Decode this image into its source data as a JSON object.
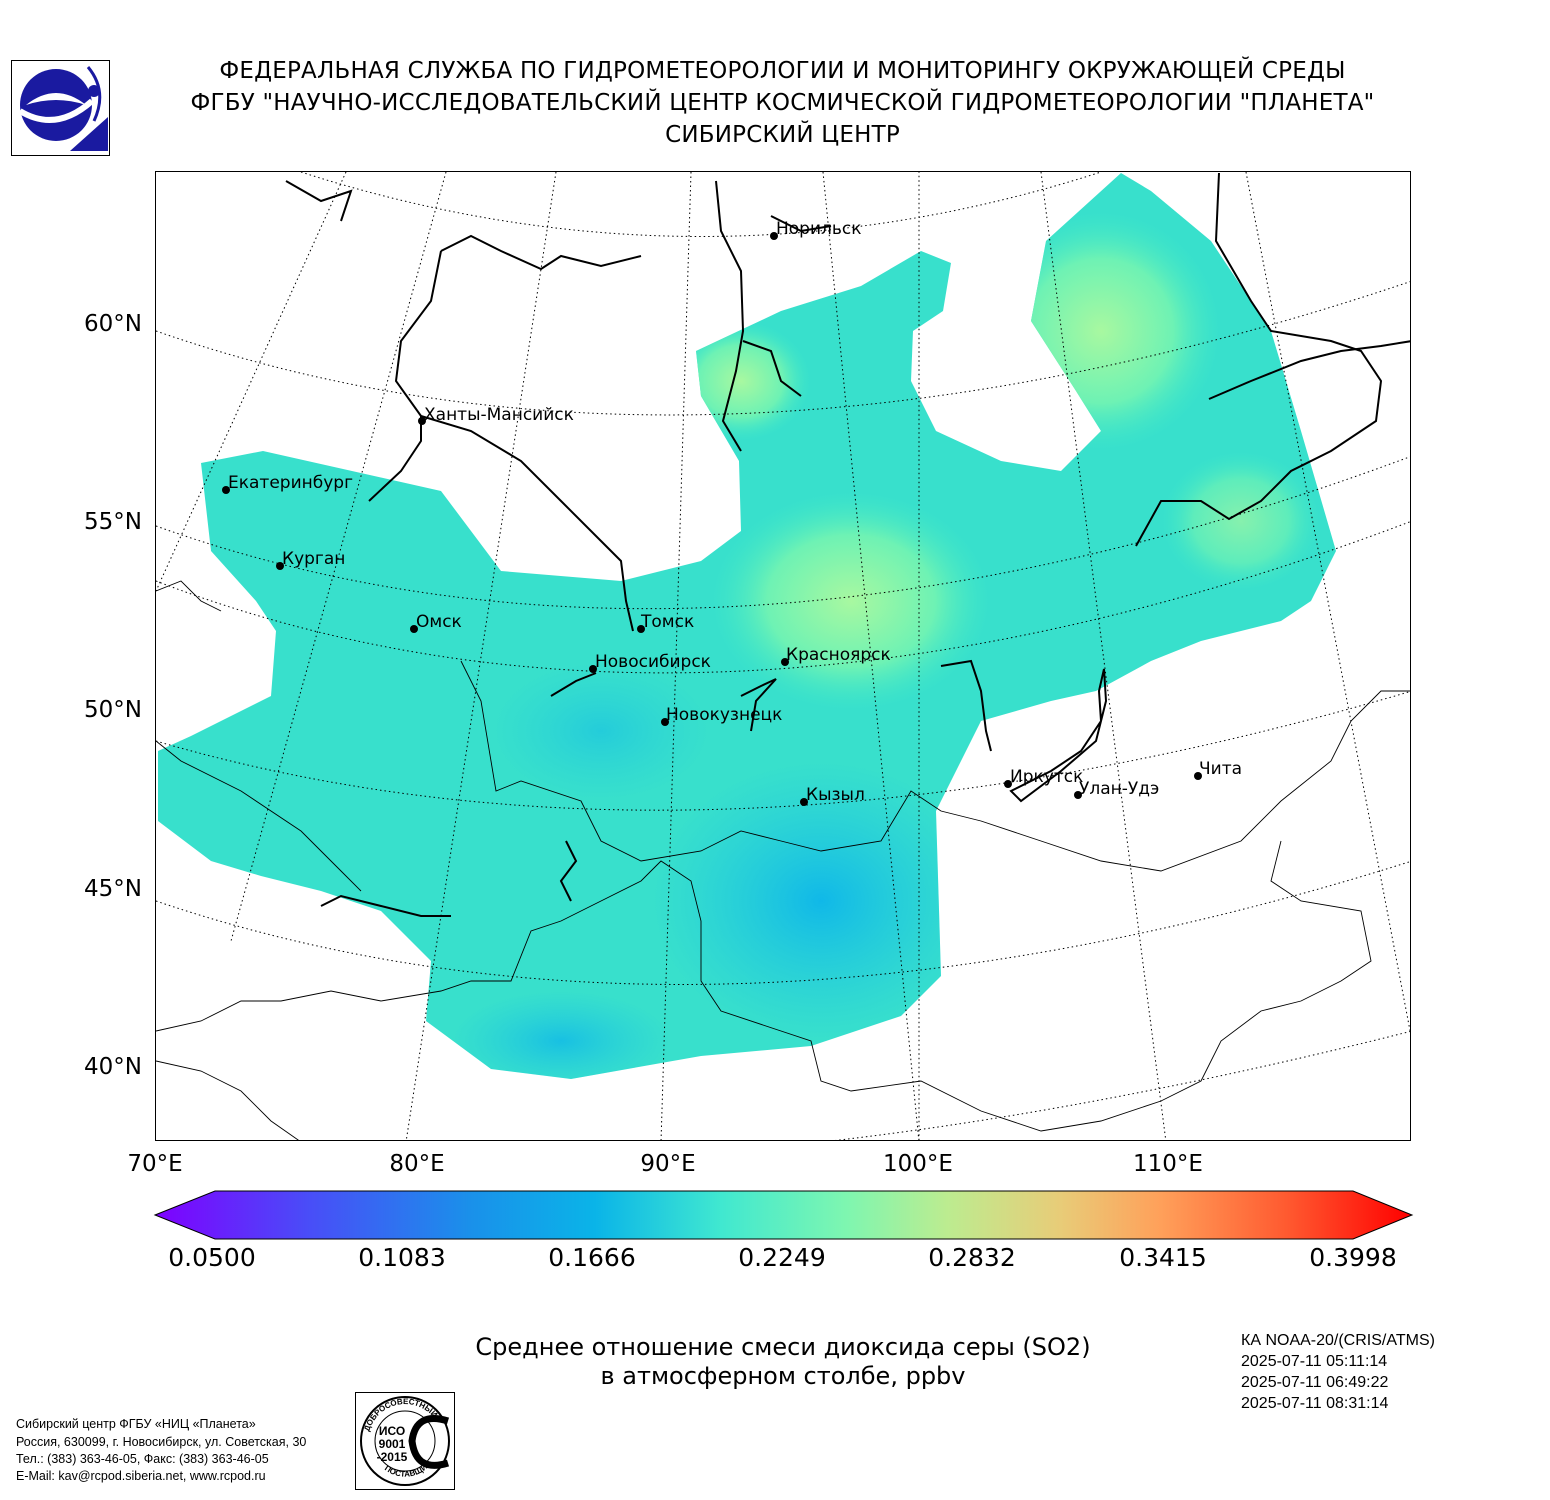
{
  "header": {
    "line1": "ФЕДЕРАЛЬНАЯ СЛУЖБА ПО ГИДРОМЕТЕОРОЛОГИИ И МОНИТОРИНГУ ОКРУЖАЮЩЕЙ СРЕДЫ",
    "line2": "ФГБУ \"НАУЧНО-ИССЛЕДОВАТЕЛЬСКИЙ ЦЕНТР КОСМИЧЕСКОЙ ГИДРОМЕТЕОРОЛОГИИ \"ПЛАНЕТА\"",
    "line3": "СИБИРСКИЙ ЦЕНТР"
  },
  "map": {
    "lat_labels": [
      "60°N",
      "55°N",
      "50°N",
      "45°N",
      "40°N"
    ],
    "lon_labels": [
      "70°E",
      "80°E",
      "90°E",
      "100°E",
      "110°E"
    ],
    "cities": [
      {
        "name": "Норильск"
      },
      {
        "name": "Ханты-Мансийск"
      },
      {
        "name": "Екатеринбург"
      },
      {
        "name": "Курган"
      },
      {
        "name": "Омск"
      },
      {
        "name": "Томск"
      },
      {
        "name": "Новосибирск"
      },
      {
        "name": "Красноярск"
      },
      {
        "name": "Новокузнецк"
      },
      {
        "name": "Кызыл"
      },
      {
        "name": "Иркутск"
      },
      {
        "name": "Улан-Удэ"
      },
      {
        "name": "Чита"
      }
    ]
  },
  "colorbar": {
    "ticks": [
      "0.0500",
      "0.1083",
      "0.1666",
      "0.2249",
      "0.2832",
      "0.3415",
      "0.3998"
    ],
    "min": 0.05,
    "max": 0.3998,
    "colors": [
      "#7f00ff",
      "#4a4cf8",
      "#1a90ea",
      "#16c8d8",
      "#4ef5c0",
      "#9af8a0",
      "#d8dc80",
      "#ffa85c",
      "#ff5a30",
      "#ff0000"
    ]
  },
  "caption": {
    "line1": "Среднее отношение смеси диоксида серы (SO2)",
    "line2": "в атмосферном столбе, ppbv"
  },
  "satellite": {
    "line1": "КА NOAA-20/(CRIS/ATMS)",
    "line2": "2025-07-11 05:11:14",
    "line3": "2025-07-11 06:49:22",
    "line4": "2025-07-11 08:31:14"
  },
  "footer": {
    "line1": "Сибирский центр ФГБУ «НИЦ «Планета»",
    "line2": "Россия, 630099, г. Новосибирск, ул. Советская, 30",
    "line3": "Тел.: (383) 363-46-05, Факс: (383) 363-46-05",
    "line4": "E-Mail: kav@rcpod.siberia.net, www.rcpod.ru"
  },
  "iso_badge": {
    "arc_top": "ДОБРОСОВЕСТНЫЙ",
    "line1": "ИСО",
    "line2": "9001",
    "line3": "-2015",
    "arc_bottom": "ПОСТАВЩИК"
  }
}
